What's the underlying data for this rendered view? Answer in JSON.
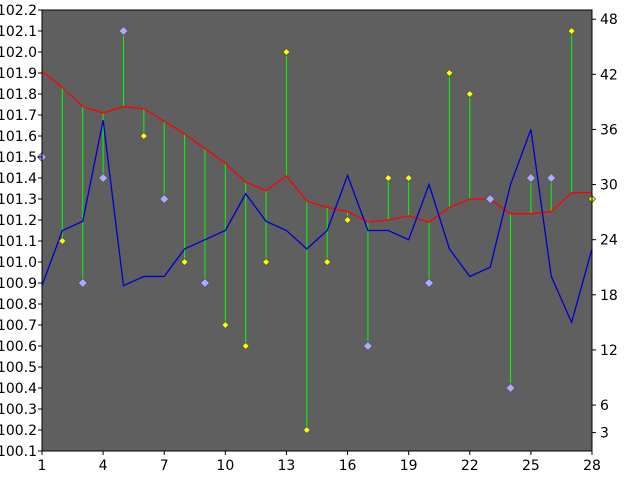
{
  "chart_data": {
    "type": "line",
    "title": "",
    "xlabel": "",
    "ylabel": "",
    "x": [
      1,
      2,
      3,
      4,
      5,
      6,
      7,
      8,
      9,
      10,
      11,
      12,
      13,
      14,
      15,
      16,
      17,
      18,
      19,
      20,
      21,
      22,
      23,
      24,
      25,
      26,
      27,
      28
    ],
    "xlim": [
      1,
      28
    ],
    "x_ticks": [
      "1",
      "4",
      "7",
      "10",
      "13",
      "16",
      "19",
      "22",
      "25",
      "28"
    ],
    "ylim_left": [
      100.1,
      102.2
    ],
    "ylim_right": [
      1,
      49
    ],
    "y_ticks_left": [
      "100.1",
      "100.2",
      "100.3",
      "100.4",
      "100.5",
      "100.6",
      "100.7",
      "100.8",
      "100.9",
      "101.0",
      "101.1",
      "101.2",
      "101.3",
      "101.4",
      "101.5",
      "101.6",
      "101.7",
      "101.8",
      "101.9",
      "102.0",
      "102.1",
      "102.2"
    ],
    "y_ticks_right": [
      "3",
      "6",
      "12",
      "18",
      "24",
      "30",
      "36",
      "42",
      "48"
    ],
    "grid": false,
    "colors": {
      "plot_background": "#5f5f5f",
      "frame": "#000000",
      "average_line": "#ff0000",
      "second_line": "#0000cc",
      "drop_lines": "#00ff00",
      "yellow_marker": "#ffff00",
      "lavender_marker": "#aaaaff",
      "marker_outline": "#555555"
    },
    "series": [
      {
        "axis": "left",
        "style": "markers-with-droplines",
        "values": [
          101.5,
          101.1,
          100.9,
          101.4,
          102.1,
          101.6,
          101.3,
          101.0,
          100.9,
          100.7,
          100.6,
          101.0,
          102.0,
          100.2,
          101.0,
          101.2,
          100.6,
          101.4,
          101.4,
          100.9,
          101.9,
          101.8,
          101.3,
          100.4,
          101.4,
          101.4,
          102.1,
          101.3
        ],
        "marker_colors": [
          "lavender",
          "yellow",
          "lavender",
          "lavender",
          "lavender",
          "yellow",
          "lavender",
          "yellow",
          "lavender",
          "yellow",
          "yellow",
          "yellow",
          "yellow",
          "yellow",
          "yellow",
          "yellow",
          "lavender",
          "yellow",
          "yellow",
          "lavender",
          "yellow",
          "yellow",
          "lavender",
          "lavender",
          "lavender",
          "lavender",
          "yellow",
          "yellow"
        ]
      },
      {
        "axis": "left",
        "style": "line-red",
        "values": [
          101.91,
          101.83,
          101.74,
          101.71,
          101.74,
          101.73,
          101.67,
          101.61,
          101.54,
          101.47,
          101.38,
          101.34,
          101.41,
          101.29,
          101.26,
          101.24,
          101.19,
          101.2,
          101.22,
          101.19,
          101.26,
          101.3,
          101.3,
          101.23,
          101.23,
          101.24,
          101.33,
          101.33
        ]
      },
      {
        "axis": "right",
        "style": "line-blue",
        "values": [
          19,
          25,
          26,
          37,
          19,
          20,
          20,
          23,
          24,
          25,
          29,
          26,
          25,
          23,
          25,
          31,
          25,
          25,
          24,
          30,
          23,
          20,
          21,
          30,
          36,
          20,
          15,
          23
        ]
      }
    ]
  }
}
